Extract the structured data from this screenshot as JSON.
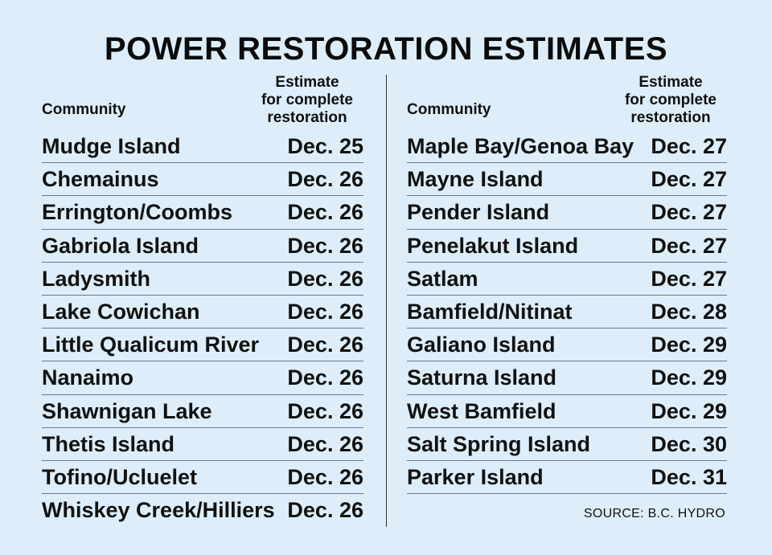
{
  "title": "POWER RESTORATION ESTIMATES",
  "headers": {
    "community": "Community",
    "estimate_line1": "Estimate",
    "estimate_line2": "for complete",
    "estimate_line3": "restoration"
  },
  "left_rows": [
    {
      "community": "Mudge Island",
      "estimate": "Dec. 25"
    },
    {
      "community": "Chemainus",
      "estimate": "Dec. 26"
    },
    {
      "community": "Errington/Coombs",
      "estimate": "Dec. 26"
    },
    {
      "community": "Gabriola Island",
      "estimate": "Dec. 26"
    },
    {
      "community": "Ladysmith",
      "estimate": "Dec. 26"
    },
    {
      "community": "Lake Cowichan",
      "estimate": "Dec. 26"
    },
    {
      "community": "Little Qualicum River",
      "estimate": "Dec. 26"
    },
    {
      "community": "Nanaimo",
      "estimate": "Dec. 26"
    },
    {
      "community": "Shawnigan Lake",
      "estimate": "Dec. 26"
    },
    {
      "community": "Thetis Island",
      "estimate": "Dec. 26"
    },
    {
      "community": "Tofino/Ucluelet",
      "estimate": "Dec. 26"
    },
    {
      "community": "Whiskey Creek/Hilliers",
      "estimate": "Dec. 26"
    }
  ],
  "right_rows": [
    {
      "community": "Maple Bay/Genoa Bay",
      "estimate": "Dec. 27"
    },
    {
      "community": "Mayne Island",
      "estimate": "Dec. 27"
    },
    {
      "community": "Pender Island",
      "estimate": "Dec. 27"
    },
    {
      "community": "Penelakut Island",
      "estimate": "Dec. 27"
    },
    {
      "community": "Satlam",
      "estimate": "Dec. 27"
    },
    {
      "community": "Bamfield/Nitinat",
      "estimate": "Dec. 28"
    },
    {
      "community": "Galiano Island",
      "estimate": "Dec. 29"
    },
    {
      "community": "Saturna Island",
      "estimate": "Dec. 29"
    },
    {
      "community": "West Bamfield",
      "estimate": "Dec. 29"
    },
    {
      "community": "Salt Spring Island",
      "estimate": "Dec. 30"
    },
    {
      "community": "Parker Island",
      "estimate": "Dec. 31"
    }
  ],
  "source": "SOURCE: B.C. HYDRO",
  "colors": {
    "background": "#ddeefa",
    "text": "#111111",
    "rule": "#6c7780"
  }
}
